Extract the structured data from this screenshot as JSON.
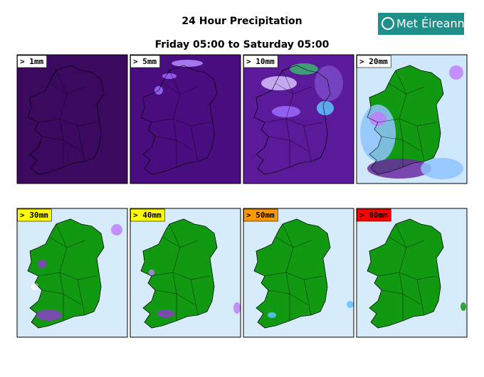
{
  "header": {
    "title": "24 Hour Precipitation",
    "subtitle": "Friday 05:00 to Saturday 05:00",
    "logo": "Met Éireann"
  },
  "panels": [
    {
      "label": "> 1mm",
      "label_color": "#ffffff"
    },
    {
      "label": "> 5mm",
      "label_color": "#ffffff"
    },
    {
      "label": "> 10mm",
      "label_color": "#ffffff"
    },
    {
      "label": "> 20mm",
      "label_color": "#ffffff"
    },
    {
      "label": "> 30mm",
      "label_color": "#ffff00"
    },
    {
      "label": "> 40mm",
      "label_color": "#ffff00"
    },
    {
      "label": "> 50mm",
      "label_color": "#ff9900"
    },
    {
      "label": "> 80mm",
      "label_color": "#ff0000"
    }
  ]
}
